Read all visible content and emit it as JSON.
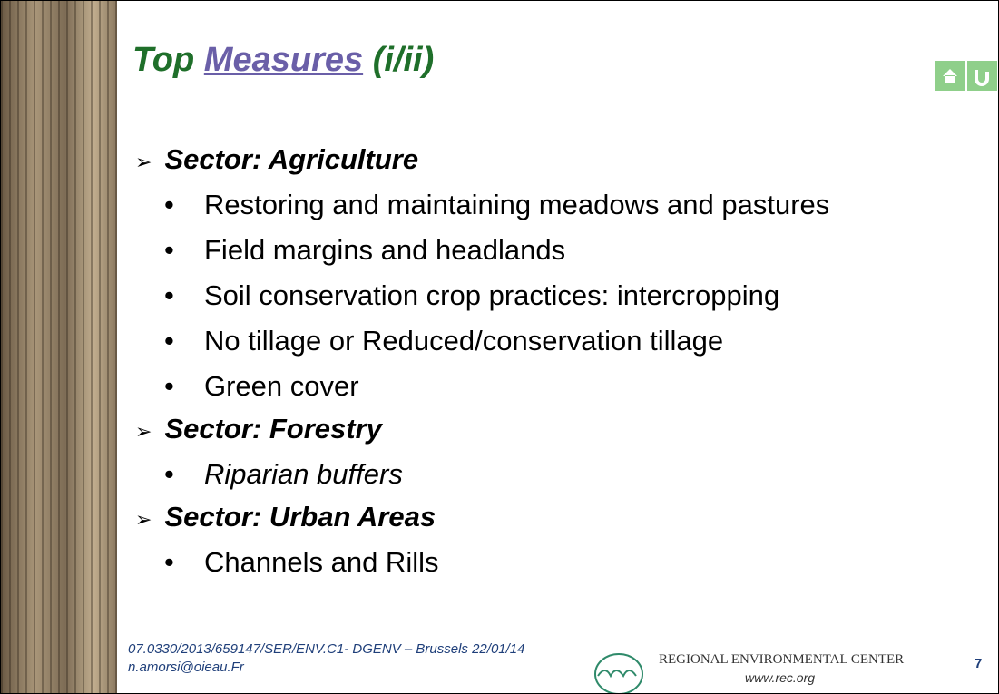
{
  "title": {
    "prefix": "Top",
    "link": "Measures",
    "suffix": "(i/ii)"
  },
  "sections": [
    {
      "heading": "Sector: Agriculture",
      "items": [
        "Restoring and maintaining meadows and pastures",
        "Field margins and headlands",
        "Soil conservation crop practices: intercropping",
        "No tillage or Reduced/conservation tillage",
        "Green cover"
      ],
      "italic": false
    },
    {
      "heading": "Sector: Forestry",
      "items": [
        "Riparian buffers"
      ],
      "italic": true
    },
    {
      "heading": "Sector: Urban Areas",
      "items": [
        "Channels and Rills"
      ],
      "italic": false
    }
  ],
  "footer": {
    "line1": "07.0330/2013/659147/SER/ENV.C1- DGENV – Brussels 22/01/14",
    "line2": "n.amorsi@oieau.Fr",
    "org": "REGIONAL ENVIRONMENTAL CENTER",
    "url": "www.rec.org",
    "page": "7"
  }
}
